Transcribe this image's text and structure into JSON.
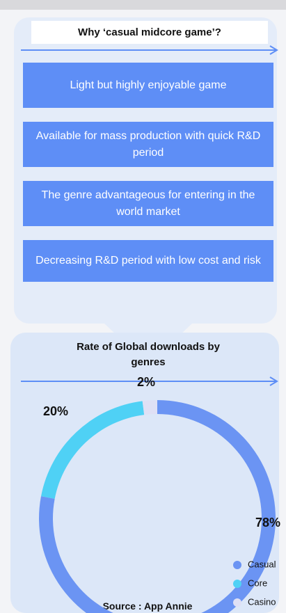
{
  "header": {
    "title": "Why ‘casual midcore game’?",
    "items": [
      "Light but highly enjoyable game",
      "Available for mass production with quick R&D period",
      "The genre advantageous for entering in the world market",
      "Decreasing R&D period with low cost and risk"
    ]
  },
  "chart_data": {
    "type": "donut",
    "title": "Rate of Global downloads by genres",
    "categories": [
      "Casual",
      "Core",
      "Casino"
    ],
    "values": [
      78,
      20,
      2
    ],
    "value_labels": [
      "78%",
      "20%",
      "2%"
    ],
    "colors": [
      "#6b94f3",
      "#4fd1f5",
      "#dfe0f5"
    ],
    "legend": "bottom-right",
    "source": "Source : App Annie"
  }
}
